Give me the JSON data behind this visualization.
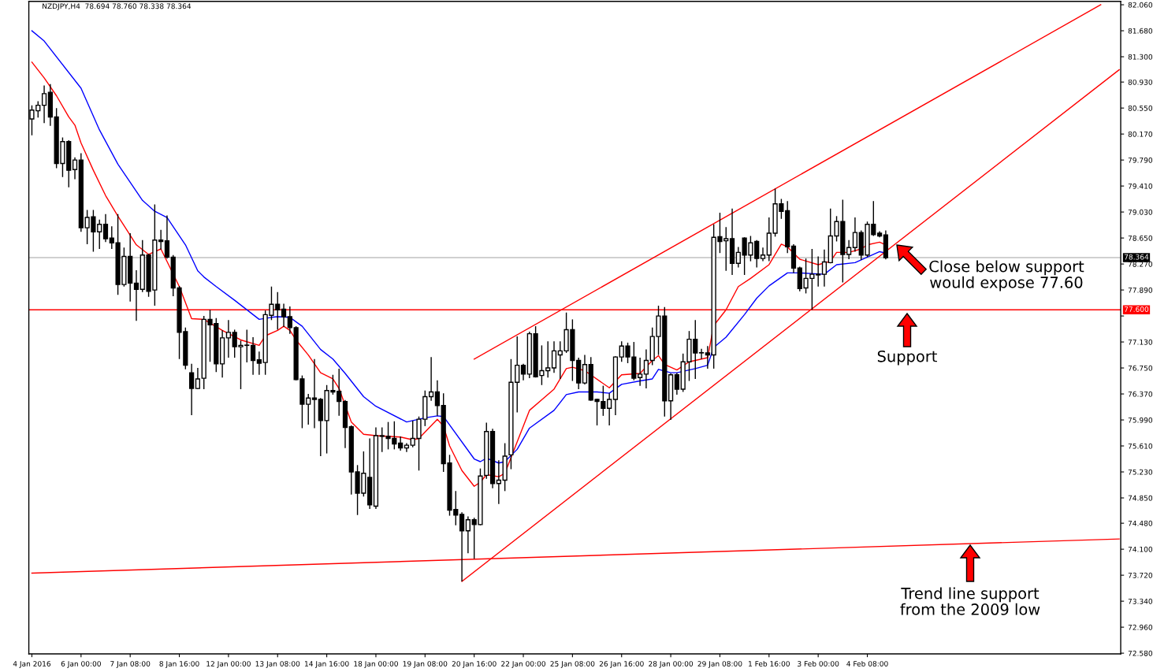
{
  "chart_data": {
    "type": "candlestick",
    "title": "NZDJPY,H4  78.694 78.760 78.338 78.364",
    "categories": [
      "4 Jan 2016",
      null,
      null,
      null,
      null,
      null,
      null,
      null,
      "6 Jan 00:00",
      null,
      null,
      null,
      null,
      null,
      null,
      null,
      "7 Jan 08:00",
      null,
      null,
      null,
      null,
      null,
      null,
      null,
      "8 Jan 16:00",
      null,
      null,
      null,
      null,
      null,
      null,
      null,
      "12 Jan 00:00",
      null,
      null,
      null,
      null,
      null,
      null,
      null,
      "13 Jan 08:00",
      null,
      null,
      null,
      null,
      null,
      null,
      null,
      "14 Jan 16:00",
      null,
      null,
      null,
      null,
      null,
      null,
      null,
      "18 Jan 00:00",
      null,
      null,
      null,
      null,
      null,
      null,
      null,
      "19 Jan 08:00",
      null,
      null,
      null,
      null,
      null,
      null,
      null,
      "20 Jan 16:00",
      null,
      null,
      null,
      null,
      null,
      null,
      null,
      "22 Jan 00:00",
      null,
      null,
      null,
      null,
      null,
      null,
      null,
      "25 Jan 08:00",
      null,
      null,
      null,
      null,
      null,
      null,
      null,
      "26 Jan 16:00",
      null,
      null,
      null,
      null,
      null,
      null,
      null,
      "28 Jan 00:00",
      null,
      null,
      null,
      null,
      null,
      null,
      null,
      "29 Jan 08:00",
      null,
      null,
      null,
      null,
      null,
      null,
      null,
      "1 Feb 16:00",
      null,
      null,
      null,
      null,
      null,
      null,
      null,
      "3 Feb 00:00",
      null,
      null,
      null,
      null,
      null,
      null,
      null,
      "4 Feb 08:00",
      null,
      null,
      null,
      null,
      null,
      null,
      null,
      null,
      null,
      null,
      null,
      null,
      null,
      null,
      null,
      null,
      null,
      null,
      null,
      null,
      null,
      null,
      null,
      null,
      null,
      null,
      null,
      null,
      null,
      null,
      null,
      null,
      null,
      null,
      null,
      null,
      null,
      null,
      null,
      null,
      null
    ],
    "ohlc": [
      [
        80.39,
        80.59,
        80.15,
        80.52
      ],
      [
        80.51,
        80.65,
        80.41,
        80.59
      ],
      [
        80.59,
        80.88,
        80.33,
        80.76
      ],
      [
        80.78,
        80.9,
        80.29,
        80.42
      ],
      [
        80.42,
        80.55,
        79.67,
        79.74
      ],
      [
        79.74,
        80.12,
        79.54,
        80.06
      ],
      [
        80.06,
        80.08,
        79.39,
        79.64
      ],
      [
        79.65,
        79.83,
        79.51,
        79.79
      ],
      [
        79.79,
        79.89,
        78.74,
        78.8
      ],
      [
        78.8,
        79.06,
        78.56,
        78.95
      ],
      [
        78.96,
        79.06,
        78.45,
        78.74
      ],
      [
        78.74,
        78.92,
        78.49,
        78.85
      ],
      [
        78.85,
        79.0,
        78.59,
        78.64
      ],
      [
        78.65,
        78.82,
        78.49,
        78.58
      ],
      [
        78.58,
        79.0,
        77.82,
        77.97
      ],
      [
        77.97,
        78.51,
        77.94,
        78.38
      ],
      [
        78.38,
        78.72,
        77.72,
        77.99
      ],
      [
        77.99,
        78.18,
        77.44,
        77.9
      ],
      [
        77.9,
        78.62,
        77.86,
        78.4
      ],
      [
        78.4,
        78.42,
        77.79,
        77.87
      ],
      [
        77.89,
        79.14,
        77.66,
        78.62
      ],
      [
        78.62,
        78.77,
        78.48,
        78.6
      ],
      [
        78.61,
        78.98,
        78.35,
        78.37
      ],
      [
        78.37,
        78.4,
        77.8,
        77.92
      ],
      [
        77.92,
        77.95,
        76.88,
        77.27
      ],
      [
        77.28,
        77.34,
        76.73,
        76.79
      ],
      [
        76.68,
        76.81,
        76.06,
        76.45
      ],
      [
        76.45,
        76.75,
        76.44,
        76.59
      ],
      [
        76.6,
        77.51,
        76.44,
        77.46
      ],
      [
        77.46,
        77.6,
        76.84,
        77.38
      ],
      [
        77.4,
        77.48,
        76.69,
        76.81
      ],
      [
        76.81,
        77.3,
        76.61,
        77.19
      ],
      [
        77.19,
        77.45,
        76.9,
        77.27
      ],
      [
        77.27,
        77.31,
        76.9,
        77.06
      ],
      [
        77.06,
        77.15,
        76.44,
        77.08
      ],
      [
        77.08,
        77.31,
        76.83,
        77.08
      ],
      [
        77.08,
        77.2,
        76.65,
        76.86
      ],
      [
        76.87,
        76.99,
        76.65,
        76.82
      ],
      [
        76.83,
        77.59,
        76.65,
        77.53
      ],
      [
        77.52,
        77.94,
        77.45,
        77.68
      ],
      [
        77.68,
        77.86,
        77.31,
        77.6
      ],
      [
        77.61,
        77.69,
        77.35,
        77.5
      ],
      [
        77.5,
        77.65,
        77.25,
        77.34
      ],
      [
        77.34,
        77.36,
        76.57,
        76.58
      ],
      [
        76.59,
        76.64,
        75.87,
        76.22
      ],
      [
        76.22,
        76.37,
        75.92,
        76.31
      ],
      [
        76.31,
        76.88,
        75.87,
        76.29
      ],
      [
        76.29,
        76.31,
        75.46,
        75.98
      ],
      [
        75.98,
        76.5,
        75.5,
        76.42
      ],
      [
        76.42,
        76.65,
        76.36,
        76.4
      ],
      [
        76.41,
        76.74,
        76.05,
        76.26
      ],
      [
        76.26,
        76.28,
        75.58,
        75.88
      ],
      [
        75.89,
        75.91,
        74.9,
        75.23
      ],
      [
        75.23,
        75.33,
        74.6,
        74.92
      ],
      [
        74.92,
        75.53,
        74.87,
        75.21
      ],
      [
        75.15,
        75.72,
        74.69,
        74.75
      ],
      [
        74.73,
        75.88,
        74.69,
        75.76
      ],
      [
        75.76,
        75.88,
        75.52,
        75.75
      ],
      [
        75.75,
        75.96,
        75.56,
        75.72
      ],
      [
        75.72,
        75.97,
        75.56,
        75.64
      ],
      [
        75.65,
        75.75,
        75.54,
        75.58
      ],
      [
        75.58,
        75.65,
        75.52,
        75.62
      ],
      [
        75.62,
        75.98,
        75.59,
        75.72
      ],
      [
        75.72,
        76.04,
        75.25,
        76.0
      ],
      [
        76.0,
        76.42,
        75.9,
        76.33
      ],
      [
        76.33,
        76.91,
        76.27,
        76.4
      ],
      [
        76.4,
        76.57,
        76.05,
        76.2
      ],
      [
        76.2,
        76.38,
        75.23,
        75.35
      ],
      [
        75.36,
        75.48,
        74.59,
        74.67
      ],
      [
        74.68,
        74.95,
        74.45,
        74.6
      ],
      [
        74.61,
        74.64,
        73.63,
        74.37
      ],
      [
        74.37,
        74.58,
        74.04,
        74.53
      ],
      [
        74.53,
        74.56,
        73.96,
        74.46
      ],
      [
        74.46,
        75.28,
        74.45,
        75.17
      ],
      [
        75.18,
        75.95,
        75.13,
        75.82
      ],
      [
        75.82,
        75.86,
        74.99,
        75.06
      ],
      [
        75.06,
        75.4,
        74.76,
        75.11
      ],
      [
        75.11,
        75.65,
        74.95,
        75.46
      ],
      [
        75.48,
        76.88,
        75.27,
        76.54
      ],
      [
        76.54,
        77.21,
        76.1,
        76.79
      ],
      [
        76.79,
        76.81,
        76.57,
        76.66
      ],
      [
        76.66,
        77.28,
        76.6,
        77.25
      ],
      [
        77.25,
        77.36,
        76.61,
        76.62
      ],
      [
        76.64,
        77.08,
        76.5,
        76.71
      ],
      [
        76.71,
        77.14,
        76.61,
        76.75
      ],
      [
        76.75,
        77.14,
        76.68,
        77.0
      ],
      [
        76.94,
        77.14,
        76.59,
        77.0
      ],
      [
        77.0,
        77.56,
        76.97,
        77.31
      ],
      [
        77.31,
        77.46,
        76.56,
        76.86
      ],
      [
        76.86,
        76.9,
        76.44,
        76.53
      ],
      [
        76.53,
        76.94,
        76.51,
        76.8
      ],
      [
        76.8,
        76.91,
        76.27,
        76.28
      ],
      [
        76.29,
        76.3,
        75.91,
        76.26
      ],
      [
        76.26,
        76.49,
        76.05,
        76.16
      ],
      [
        76.16,
        76.38,
        75.91,
        76.29
      ],
      [
        76.29,
        76.92,
        76.06,
        76.91
      ],
      [
        76.91,
        77.14,
        76.84,
        77.07
      ],
      [
        77.07,
        77.12,
        76.82,
        76.91
      ],
      [
        76.91,
        77.13,
        76.57,
        76.6
      ],
      [
        76.61,
        76.9,
        76.49,
        76.66
      ],
      [
        76.66,
        77.02,
        76.45,
        76.86
      ],
      [
        76.86,
        77.34,
        76.79,
        77.21
      ],
      [
        77.21,
        77.66,
        76.94,
        77.51
      ],
      [
        77.51,
        77.64,
        76.04,
        76.27
      ],
      [
        76.27,
        76.67,
        75.99,
        76.65
      ],
      [
        76.65,
        76.68,
        76.36,
        76.44
      ],
      [
        76.44,
        76.96,
        76.4,
        76.84
      ],
      [
        76.84,
        77.29,
        76.56,
        77.17
      ],
      [
        77.17,
        77.45,
        76.59,
        76.97
      ],
      [
        76.97,
        77.03,
        76.88,
        76.97
      ],
      [
        76.97,
        77.07,
        76.74,
        76.94
      ],
      [
        76.94,
        78.85,
        76.74,
        78.66
      ],
      [
        78.67,
        79.02,
        78.43,
        78.6
      ],
      [
        78.61,
        78.81,
        78.17,
        78.64
      ],
      [
        78.64,
        79.08,
        78.11,
        78.28
      ],
      [
        78.28,
        78.52,
        78.22,
        78.44
      ],
      [
        78.65,
        78.66,
        78.11,
        78.4
      ],
      [
        78.4,
        78.68,
        78.31,
        78.58
      ],
      [
        78.6,
        78.62,
        78.22,
        78.35
      ],
      [
        78.35,
        78.51,
        78.31,
        78.4
      ],
      [
        78.4,
        78.95,
        78.31,
        78.72
      ],
      [
        78.72,
        79.37,
        78.67,
        79.15
      ],
      [
        79.15,
        79.22,
        78.93,
        79.04
      ],
      [
        79.05,
        79.19,
        78.43,
        78.52
      ],
      [
        78.53,
        78.56,
        78.14,
        78.21
      ],
      [
        78.21,
        78.23,
        77.87,
        77.91
      ],
      [
        77.92,
        78.35,
        77.84,
        78.06
      ],
      [
        78.06,
        78.49,
        77.6,
        78.12
      ],
      [
        78.11,
        78.38,
        77.94,
        78.12
      ],
      [
        78.12,
        78.48,
        77.94,
        78.3
      ],
      [
        78.29,
        79.08,
        78.28,
        78.68
      ],
      [
        78.68,
        78.97,
        78.6,
        78.89
      ],
      [
        78.89,
        79.21,
        78.0,
        78.41
      ],
      [
        78.41,
        78.62,
        78.34,
        78.51
      ],
      [
        78.51,
        78.95,
        78.45,
        78.73
      ],
      [
        78.73,
        78.76,
        78.33,
        78.4
      ],
      [
        78.4,
        78.89,
        78.37,
        78.85
      ],
      [
        78.85,
        79.19,
        78.68,
        78.7
      ],
      [
        78.72,
        78.75,
        78.66,
        78.68
      ],
      [
        78.694,
        78.76,
        78.338,
        78.364
      ],
      null,
      null,
      null,
      null,
      null,
      null,
      null,
      null,
      null,
      null,
      null,
      null,
      null,
      null,
      null,
      null,
      null,
      null,
      null,
      null,
      null,
      null,
      null,
      null,
      null,
      null,
      null,
      null,
      null,
      null,
      null,
      null,
      null,
      null,
      null,
      null,
      null,
      null
    ],
    "series": [
      {
        "type": "line",
        "color": "#ff0000",
        "values": [
          81.22,
          null,
          80.99,
          null,
          80.73,
          null,
          80.42,
          80.3,
          80.04,
          null,
          79.64,
          null,
          79.27,
          null,
          78.97,
          78.83,
          null,
          78.55,
          null,
          78.41,
          null,
          78.49,
          null,
          null,
          77.94,
          null,
          77.47,
          null,
          77.46,
          null,
          null,
          77.3,
          null,
          null,
          77.16,
          null,
          null,
          77.08,
          77.22,
          null,
          77.3,
          77.36,
          77.3,
          77.16,
          null,
          76.94,
          null,
          76.68,
          null,
          76.59,
          76.45,
          null,
          75.96,
          null,
          75.78,
          null,
          75.76,
          null,
          null,
          null,
          75.74,
          null,
          75.7,
          75.72,
          null,
          null,
          76.0,
          75.9,
          75.61,
          null,
          75.25,
          null,
          75.02,
          75.08,
          75.19,
          null,
          75.16,
          75.21,
          null,
          null,
          null,
          76.13,
          null,
          null,
          null,
          76.44,
          null,
          76.74,
          76.76,
          null,
          76.71,
          null,
          null,
          null,
          76.46,
          null,
          76.65,
          null,
          null,
          76.67,
          null,
          76.86,
          76.93,
          76.8,
          null,
          76.72,
          null,
          76.84,
          null,
          null,
          76.9,
          77.37,
          null,
          77.6,
          null,
          77.94,
          null,
          78.06,
          null,
          null,
          78.26,
          null,
          78.56,
          78.52,
          null,
          78.34,
          null,
          null,
          78.26,
          null,
          78.31,
          78.44,
          null,
          78.44,
          null,
          78.49,
          78.55,
          null,
          78.59,
          78.55,
          null,
          null,
          null,
          null,
          null,
          null,
          null,
          null,
          null,
          null,
          null,
          null,
          null,
          null,
          null,
          null,
          null,
          null,
          null,
          null,
          null,
          null,
          null,
          null,
          null,
          null,
          null,
          null,
          null,
          null,
          null,
          null,
          null,
          null,
          null,
          null,
          null,
          null
        ]
      },
      {
        "type": "line",
        "color": "#0000ff",
        "values": [
          81.68,
          null,
          81.53,
          null,
          null,
          null,
          null,
          null,
          80.84,
          null,
          null,
          80.23,
          null,
          null,
          79.73,
          null,
          null,
          null,
          79.2,
          null,
          79.04,
          null,
          78.95,
          null,
          null,
          78.55,
          null,
          78.17,
          78.08,
          null,
          77.94,
          null,
          null,
          77.74,
          null,
          null,
          null,
          77.46,
          null,
          77.49,
          77.5,
          null,
          77.49,
          null,
          77.36,
          null,
          null,
          77.02,
          null,
          76.88,
          null,
          76.67,
          null,
          null,
          76.33,
          null,
          76.19,
          null,
          null,
          null,
          null,
          75.96,
          null,
          null,
          76.02,
          null,
          76.05,
          76.04,
          null,
          null,
          null,
          null,
          75.42,
          75.38,
          75.43,
          null,
          75.36,
          75.38,
          null,
          75.56,
          null,
          75.87,
          null,
          null,
          null,
          76.13,
          null,
          76.36,
          null,
          76.4,
          null,
          null,
          76.4,
          null,
          76.38,
          null,
          76.51,
          null,
          null,
          76.56,
          null,
          76.59,
          76.73,
          null,
          76.68,
          76.68,
          null,
          null,
          76.74,
          null,
          76.79,
          77.05,
          null,
          77.2,
          null,
          null,
          77.53,
          null,
          77.77,
          null,
          77.95,
          null,
          null,
          78.14,
          null,
          78.14,
          null,
          null,
          null,
          78.12,
          null,
          78.26,
          null,
          null,
          78.29,
          null,
          78.37,
          null,
          78.45,
          78.43,
          null,
          null,
          null,
          null,
          null,
          null,
          null,
          null,
          null,
          null,
          null,
          null,
          null,
          null,
          null,
          null,
          null,
          null,
          null,
          null,
          null,
          null,
          null,
          null,
          null,
          null,
          null,
          null,
          null,
          null,
          null,
          null,
          null,
          null,
          null,
          null,
          null,
          null
        ]
      },
      {
        "type": "line",
        "color": "#ff0000",
        "values": [
          null,
          null,
          null,
          null,
          null,
          null,
          null,
          null,
          null,
          null,
          null,
          null,
          null,
          null,
          null,
          null,
          null,
          null,
          null,
          null,
          null,
          null,
          null,
          null,
          null,
          null,
          null,
          null,
          null,
          null,
          null,
          null,
          null,
          null,
          null,
          null,
          null,
          null,
          null,
          null,
          null,
          null,
          null,
          null,
          null,
          null,
          null,
          null,
          null,
          null,
          null,
          null,
          null,
          null,
          null,
          null,
          null,
          null,
          null,
          null,
          null,
          null,
          null,
          null,
          null,
          null,
          null,
          null,
          null,
          null,
          null,
          null,
          76.88,
          null,
          null,
          null,
          null,
          null,
          null,
          null,
          null,
          null,
          null,
          null,
          null,
          null,
          null,
          null,
          null,
          null,
          null,
          null,
          null,
          null,
          null,
          null,
          null,
          null,
          null,
          null,
          null,
          null,
          null,
          null,
          null,
          null,
          null,
          null,
          null,
          null,
          null,
          null,
          null,
          null,
          null,
          null,
          null,
          null,
          null,
          null,
          null,
          null,
          null,
          null,
          null,
          null,
          null,
          null,
          null,
          null,
          null,
          null,
          null,
          null,
          null,
          null,
          null,
          null,
          null,
          null,
          null,
          null,
          null,
          null,
          null,
          null,
          null,
          null,
          null,
          null,
          null,
          null,
          null,
          null,
          null,
          null,
          null,
          null,
          null,
          null,
          null,
          null,
          null,
          null,
          null,
          null,
          null,
          null,
          null,
          null,
          null,
          null,
          null,
          null,
          82.06,
          null,
          null,
          null
        ]
      },
      {
        "type": "line",
        "color": "#ff0000",
        "values": [
          null,
          null,
          null,
          null,
          null,
          null,
          null,
          null,
          null,
          null,
          null,
          null,
          null,
          null,
          null,
          null,
          null,
          null,
          null,
          null,
          null,
          null,
          null,
          null,
          null,
          null,
          null,
          null,
          null,
          null,
          null,
          null,
          null,
          null,
          null,
          null,
          null,
          null,
          null,
          null,
          null,
          null,
          null,
          null,
          null,
          null,
          null,
          null,
          null,
          null,
          null,
          null,
          null,
          null,
          null,
          null,
          null,
          null,
          null,
          null,
          null,
          null,
          null,
          null,
          null,
          null,
          null,
          null,
          null,
          null,
          73.63,
          null,
          null,
          null,
          null,
          null,
          null,
          null,
          null,
          null,
          null,
          null,
          null,
          null,
          null,
          null,
          null,
          null,
          null,
          null,
          null,
          null,
          null,
          null,
          null,
          null,
          null,
          null,
          null,
          null,
          null,
          null,
          null,
          null,
          null,
          null,
          null,
          null,
          null,
          null,
          null,
          null,
          null,
          null,
          null,
          null,
          null,
          null,
          null,
          null,
          null,
          null,
          null,
          null,
          null,
          null,
          null,
          null,
          null,
          null,
          null,
          null,
          null,
          null,
          null,
          null,
          null,
          null,
          null,
          null,
          null,
          null,
          null,
          null,
          null,
          null,
          null,
          null,
          null,
          null,
          null,
          null,
          null,
          null,
          null,
          null,
          null,
          null,
          null,
          null,
          null,
          null,
          null,
          null,
          null,
          null,
          null,
          null,
          null,
          null,
          null,
          null,
          null,
          null,
          null,
          null,
          null,
          81.11
        ]
      },
      {
        "type": "line",
        "color": "#ff0000",
        "values": [
          73.75,
          null,
          null,
          null,
          null,
          null,
          null,
          null,
          null,
          null,
          null,
          null,
          null,
          null,
          null,
          null,
          null,
          null,
          null,
          null,
          null,
          null,
          null,
          null,
          null,
          null,
          null,
          null,
          null,
          null,
          null,
          null,
          null,
          null,
          null,
          null,
          null,
          null,
          null,
          null,
          null,
          null,
          null,
          null,
          null,
          null,
          null,
          null,
          null,
          null,
          null,
          null,
          null,
          null,
          null,
          null,
          null,
          null,
          null,
          null,
          null,
          null,
          null,
          null,
          null,
          null,
          null,
          null,
          null,
          null,
          null,
          null,
          null,
          null,
          null,
          null,
          null,
          null,
          null,
          null,
          null,
          null,
          null,
          null,
          null,
          null,
          null,
          null,
          null,
          null,
          null,
          null,
          null,
          null,
          null,
          null,
          null,
          null,
          null,
          null,
          null,
          null,
          null,
          null,
          null,
          null,
          null,
          null,
          null,
          null,
          null,
          null,
          null,
          null,
          null,
          null,
          null,
          null,
          null,
          null,
          null,
          null,
          null,
          null,
          null,
          null,
          null,
          null,
          null,
          null,
          null,
          null,
          null,
          null,
          null,
          null,
          null,
          null,
          null,
          null,
          null,
          null,
          null,
          null,
          null,
          null,
          null,
          null,
          null,
          null,
          null,
          null,
          null,
          null,
          null,
          null,
          null,
          null,
          null,
          null,
          null,
          null,
          null,
          null,
          null,
          null,
          null,
          null,
          null,
          null,
          null,
          null,
          null,
          null,
          null,
          null,
          null,
          74.25
        ]
      }
    ],
    "ref_lines": [
      {
        "axis": "y",
        "value": 77.6,
        "label": "77.600",
        "color": "#ff0000"
      },
      {
        "axis": "y",
        "value": 78.364,
        "label": "78.364",
        "color": "#c0c0c0"
      }
    ],
    "annotations": [
      "Close below support\nwould expose 77.60",
      "Support",
      "Trend line support\nfrom the 2009 low"
    ],
    "ylim": [
      72.57,
      82.11
    ],
    "yticks": [
      {
        "value": 82.06,
        "label": "82.060"
      },
      {
        "value": 81.68,
        "label": "81.680"
      },
      {
        "value": 81.3,
        "label": "81.300"
      },
      {
        "value": 80.93,
        "label": "80.930"
      },
      {
        "value": 80.55,
        "label": "80.550"
      },
      {
        "value": 80.17,
        "label": "80.170"
      },
      {
        "value": 79.79,
        "label": "79.790"
      },
      {
        "value": 79.41,
        "label": "79.410"
      },
      {
        "value": 79.03,
        "label": "79.030"
      },
      {
        "value": 78.65,
        "label": "78.650"
      },
      {
        "value": 78.27,
        "label": "78.270"
      },
      {
        "value": 77.89,
        "label": "77.890"
      },
      {
        "value": 77.51,
        "label": null
      },
      {
        "value": 77.13,
        "label": "77.130"
      },
      {
        "value": 76.75,
        "label": "76.750"
      },
      {
        "value": 76.37,
        "label": "76.370"
      },
      {
        "value": 75.99,
        "label": "75.990"
      },
      {
        "value": 75.61,
        "label": "75.610"
      },
      {
        "value": 75.23,
        "label": "75.230"
      },
      {
        "value": 74.85,
        "label": "74.850"
      },
      {
        "value": 74.48,
        "label": "74.480"
      },
      {
        "value": 74.1,
        "label": "74.100"
      },
      {
        "value": 73.72,
        "label": "73.720"
      },
      {
        "value": 73.34,
        "label": "73.340"
      },
      {
        "value": 72.96,
        "label": "72.960"
      },
      {
        "value": 72.58,
        "label": "72.580"
      }
    ],
    "grid": false,
    "legend": false
  }
}
